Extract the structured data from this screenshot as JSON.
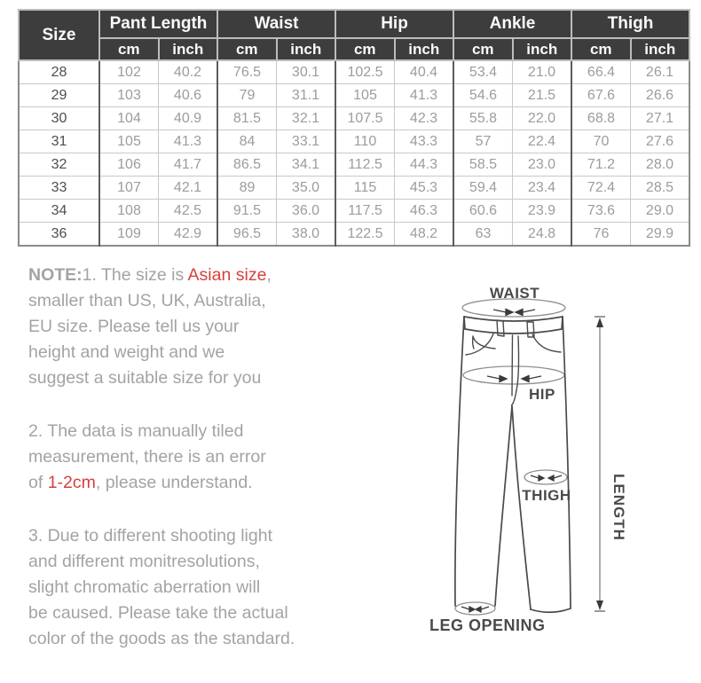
{
  "colors": {
    "header_bg": "#3d3d3d",
    "header_text": "#fafafa",
    "body_value_text": "#9c9c9c",
    "size_value_text": "#4d4d4d",
    "note_text": "#a3a3a3",
    "accent_red": "#d5413e",
    "diagram_line": "#4a4a4a"
  },
  "table": {
    "size_header": "Size",
    "unit_cm": "cm",
    "unit_inch": "inch",
    "groups": [
      {
        "label": "Pant Length"
      },
      {
        "label": "Waist"
      },
      {
        "label": "Hip"
      },
      {
        "label": "Ankle"
      },
      {
        "label": "Thigh"
      }
    ],
    "rows": [
      {
        "size": "28",
        "values": [
          "102",
          "40.2",
          "76.5",
          "30.1",
          "102.5",
          "40.4",
          "53.4",
          "21.0",
          "66.4",
          "26.1"
        ]
      },
      {
        "size": "29",
        "values": [
          "103",
          "40.6",
          "79",
          "31.1",
          "105",
          "41.3",
          "54.6",
          "21.5",
          "67.6",
          "26.6"
        ]
      },
      {
        "size": "30",
        "values": [
          "104",
          "40.9",
          "81.5",
          "32.1",
          "107.5",
          "42.3",
          "55.8",
          "22.0",
          "68.8",
          "27.1"
        ]
      },
      {
        "size": "31",
        "values": [
          "105",
          "41.3",
          "84",
          "33.1",
          "110",
          "43.3",
          "57",
          "22.4",
          "70",
          "27.6"
        ]
      },
      {
        "size": "32",
        "values": [
          "106",
          "41.7",
          "86.5",
          "34.1",
          "112.5",
          "44.3",
          "58.5",
          "23.0",
          "71.2",
          "28.0"
        ]
      },
      {
        "size": "33",
        "values": [
          "107",
          "42.1",
          "89",
          "35.0",
          "115",
          "45.3",
          "59.4",
          "23.4",
          "72.4",
          "28.5"
        ]
      },
      {
        "size": "34",
        "values": [
          "108",
          "42.5",
          "91.5",
          "36.0",
          "117.5",
          "46.3",
          "60.6",
          "23.9",
          "73.6",
          "29.0"
        ]
      },
      {
        "size": "36",
        "values": [
          "109",
          "42.9",
          "96.5",
          "38.0",
          "122.5",
          "48.2",
          "63",
          "24.8",
          "76",
          "29.9"
        ]
      }
    ]
  },
  "notes": {
    "p1": {
      "bold_prefix": "NOTE:",
      "line1_pre": "1. The size is ",
      "line1_red": "Asian size",
      "line1_post": ",",
      "line2": "smaller than US, UK, Australia,",
      "line3": "EU size. Please tell us your",
      "line4": "height and weight and we",
      "line5": "suggest a suitable size for you"
    },
    "p2": {
      "line1": "2. The data is manually tiled",
      "line2": "measurement, there is an error",
      "line3_pre": "of ",
      "line3_red": "1-2cm",
      "line3_post": ", please understand."
    },
    "p3": {
      "line1": "3. Due to different shooting light",
      "line2": "and different monitresolutions,",
      "line3": "slight chromatic aberration will",
      "line4": "be caused. Please take the actual",
      "line5": "color of the goods as the standard."
    }
  },
  "diagram": {
    "waist_label": "WAIST",
    "hip_label": "HIP",
    "thigh_label": "THIGH",
    "leg_opening_label": "LEG OPENING",
    "length_label": "LENGTH"
  }
}
